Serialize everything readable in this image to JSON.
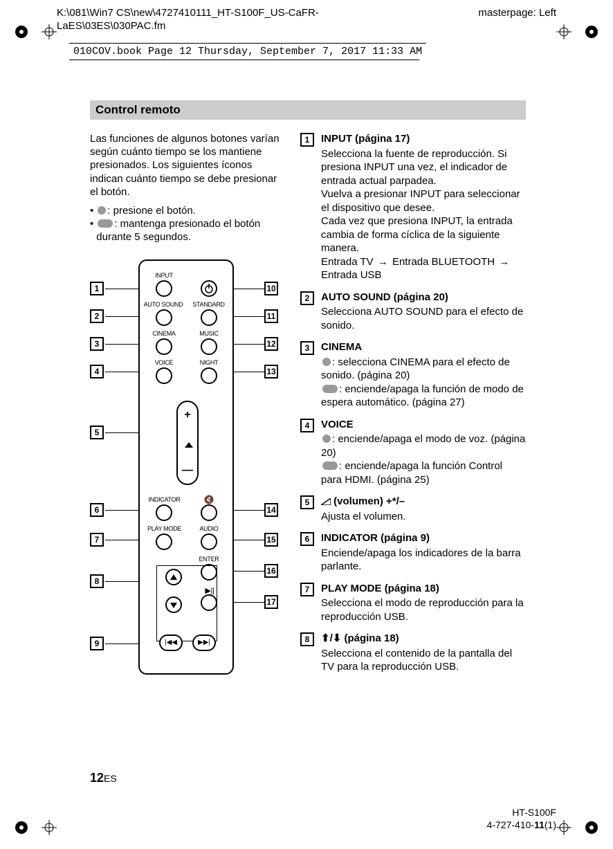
{
  "header": {
    "path_line1": "K:\\081\\Win7 CS\\new\\4727410111_HT-S100F_US-CaFR-",
    "path_line2": "LaES\\03ES\\030PAC.fm",
    "masterpage": "masterpage: Left",
    "bookline": "010COV.book  Page 12  Thursday, September 7, 2017  11:33 AM"
  },
  "section_title": "Control remoto",
  "intro": "Las funciones de algunos botones varían según cuánto tiempo se los mantiene presionados. Los siguientes íconos indican cuánto tiempo se debe presionar el botón.",
  "bullet_short": ": presione el botón.",
  "bullet_long": ": mantenga presionado el botón durante 5 segundos.",
  "remote": {
    "labels": {
      "input": "INPUT",
      "auto_sound": "AUTO SOUND",
      "standard": "STANDARD",
      "cinema": "CINEMA",
      "music": "MUSIC",
      "voice": "VOICE",
      "night": "NIGHT",
      "indicator": "INDICATOR",
      "play_mode": "PLAY MODE",
      "audio": "AUDIO",
      "enter": "ENTER"
    },
    "callouts_left": [
      "1",
      "2",
      "3",
      "4",
      "5",
      "6",
      "7",
      "8",
      "9"
    ],
    "callouts_right": [
      "10",
      "11",
      "12",
      "13",
      "14",
      "15",
      "16",
      "17"
    ]
  },
  "descriptions": [
    {
      "num": "1",
      "title": "INPUT (página 17)",
      "body": "Selecciona la fuente de reproducción. Si presiona INPUT una vez, el indicador de entrada actual parpadea.\nVuelva a presionar INPUT para seleccionar el dispositivo que desee.\nCada vez que presiona INPUT, la entrada cambia de forma cíclica de la siguiente manera.\nEntrada TV → Entrada BLUETOOTH → Entrada USB",
      "has_cycle": true
    },
    {
      "num": "2",
      "title": "AUTO SOUND (página 20)",
      "body": "Selecciona AUTO SOUND para el efecto de sonido."
    },
    {
      "num": "3",
      "title": "CINEMA",
      "body_parts": [
        {
          "icon": "short",
          "text": ": selecciona CINEMA para el efecto de sonido. (página 20)"
        },
        {
          "icon": "long",
          "text": ": enciende/apaga la función de modo de espera automático. (página 27)"
        }
      ]
    },
    {
      "num": "4",
      "title": "VOICE",
      "body_parts": [
        {
          "icon": "short",
          "text": ": enciende/apaga el modo de voz. (página 20)"
        },
        {
          "icon": "long",
          "text": ": enciende/apaga la función Control para HDMI. (página 25)"
        }
      ]
    },
    {
      "num": "5",
      "title_prefix_icon": "vol",
      "title": " (volumen) +*/–",
      "body": "Ajusta el volumen."
    },
    {
      "num": "6",
      "title": "INDICATOR (página 9)",
      "body": "Enciende/apaga los indicadores de la barra parlante."
    },
    {
      "num": "7",
      "title": "PLAY MODE (página 18)",
      "body": "Selecciona el modo de reproducción para la reproducción USB."
    },
    {
      "num": "8",
      "title_prefix_icon": "updown",
      "title": " (página 18)",
      "body": "Selecciona el contenido de la pantalla del TV para la reproducción USB."
    }
  ],
  "page_number": {
    "num": "12",
    "suffix": "ES"
  },
  "footer": {
    "model": "HT-S100F",
    "code_a": "4-727-410-",
    "code_b": "11",
    "code_c": "(1)"
  }
}
